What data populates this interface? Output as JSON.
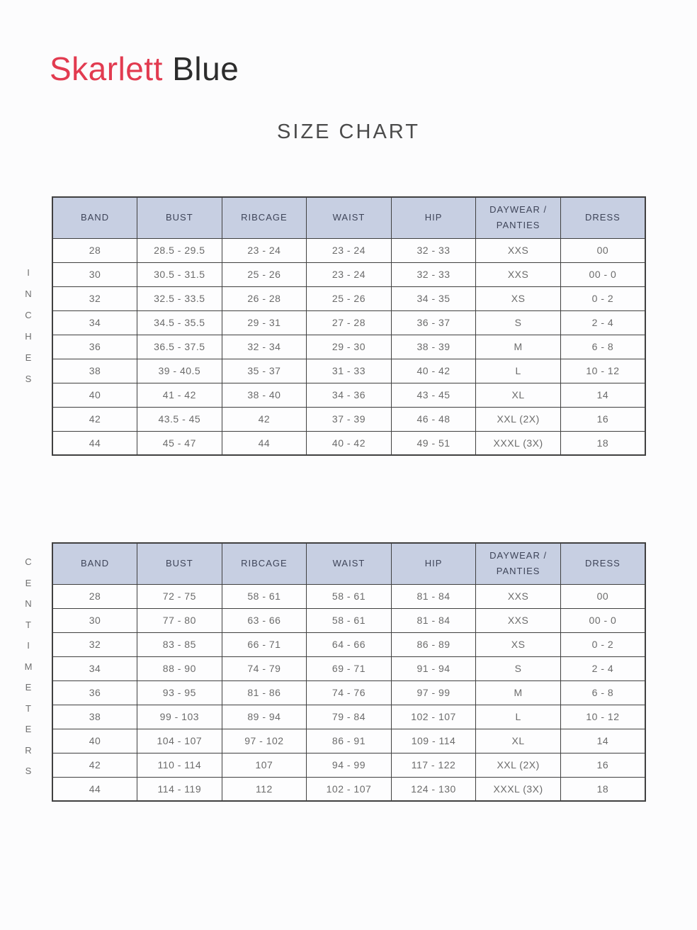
{
  "brand": {
    "first_word": "Skarlett",
    "second_word": "Blue",
    "first_color": "#e23b50",
    "second_color": "#2c2c2c"
  },
  "title": "SIZE CHART",
  "colors": {
    "header_bg": "#c7cfe2",
    "header_text": "#3e4458",
    "cell_text": "#6b6b6b",
    "border": "#404040",
    "page_bg": "#fcfcfd"
  },
  "tables": [
    {
      "unit_label": "INCHES",
      "columns": [
        "BAND",
        "BUST",
        "RIBCAGE",
        "WAIST",
        "HIP",
        "DAYWEAR /\nPANTIES",
        "DRESS"
      ],
      "rows": [
        [
          "28",
          "28.5 - 29.5",
          "23 - 24",
          "23 - 24",
          "32 - 33",
          "XXS",
          "00"
        ],
        [
          "30",
          "30.5 - 31.5",
          "25 - 26",
          "23 - 24",
          "32 - 33",
          "XXS",
          "00 - 0"
        ],
        [
          "32",
          "32.5 - 33.5",
          "26 - 28",
          "25 - 26",
          "34 - 35",
          "XS",
          "0 - 2"
        ],
        [
          "34",
          "34.5 - 35.5",
          "29 - 31",
          "27 - 28",
          "36 - 37",
          "S",
          "2 - 4"
        ],
        [
          "36",
          "36.5 - 37.5",
          "32 - 34",
          "29 - 30",
          "38 - 39",
          "M",
          "6 - 8"
        ],
        [
          "38",
          "39 - 40.5",
          "35 - 37",
          "31 - 33",
          "40 - 42",
          "L",
          "10 - 12"
        ],
        [
          "40",
          "41 - 42",
          "38 - 40",
          "34 - 36",
          "43 - 45",
          "XL",
          "14"
        ],
        [
          "42",
          "43.5 - 45",
          "42",
          "37 - 39",
          "46 - 48",
          "XXL (2X)",
          "16"
        ],
        [
          "44",
          "45 - 47",
          "44",
          "40 - 42",
          "49 - 51",
          "XXXL (3X)",
          "18"
        ]
      ]
    },
    {
      "unit_label": "CENTIMETERS",
      "columns": [
        "BAND",
        "BUST",
        "RIBCAGE",
        "WAIST",
        "HIP",
        "DAYWEAR /\nPANTIES",
        "DRESS"
      ],
      "rows": [
        [
          "28",
          "72 - 75",
          "58 - 61",
          "58 - 61",
          "81 - 84",
          "XXS",
          "00"
        ],
        [
          "30",
          "77 - 80",
          "63 - 66",
          "58 - 61",
          "81 - 84",
          "XXS",
          "00 - 0"
        ],
        [
          "32",
          "83 - 85",
          "66 - 71",
          "64 - 66",
          "86 - 89",
          "XS",
          "0 - 2"
        ],
        [
          "34",
          "88 - 90",
          "74 - 79",
          "69 - 71",
          "91 - 94",
          "S",
          "2 - 4"
        ],
        [
          "36",
          "93 - 95",
          "81 - 86",
          "74 - 76",
          "97 - 99",
          "M",
          "6 - 8"
        ],
        [
          "38",
          "99 - 103",
          "89 - 94",
          "79 - 84",
          "102 - 107",
          "L",
          "10 - 12"
        ],
        [
          "40",
          "104 - 107",
          "97 - 102",
          "86 - 91",
          "109 - 114",
          "XL",
          "14"
        ],
        [
          "42",
          "110 - 114",
          "107",
          "94 - 99",
          "117 - 122",
          "XXL (2X)",
          "16"
        ],
        [
          "44",
          "114 - 119",
          "112",
          "102 - 107",
          "124 - 130",
          "XXXL (3X)",
          "18"
        ]
      ]
    }
  ]
}
